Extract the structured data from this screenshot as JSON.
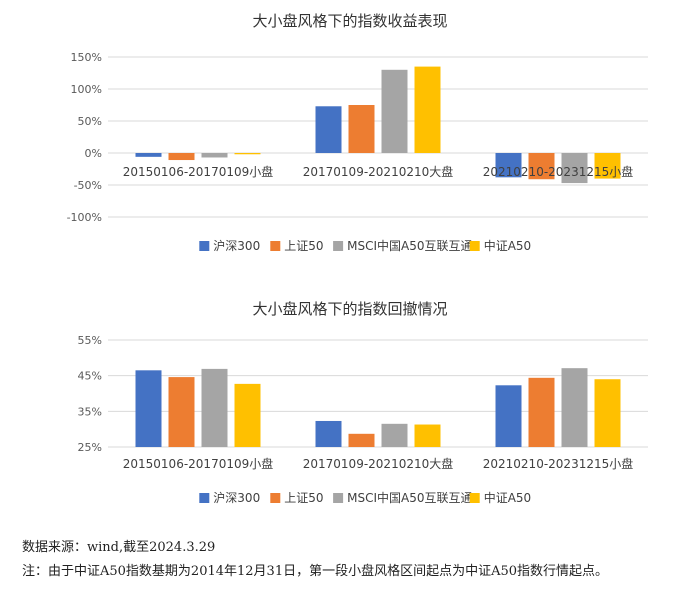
{
  "chart_data": [
    {
      "type": "bar",
      "title": "大小盘风格下的指数收益表现",
      "categories": [
        "20150106-20170109小盘",
        "20170109-20210210大盘",
        "20210210-20231215小盘"
      ],
      "series": [
        {
          "name": "沪深300",
          "color": "#4472C4",
          "values": [
            -6,
            73,
            -38
          ]
        },
        {
          "name": "上证50",
          "color": "#ED7D31",
          "values": [
            -11,
            75,
            -41
          ]
        },
        {
          "name": "MSCI中国A50互联互通",
          "color": "#A5A5A5",
          "values": [
            -7,
            130,
            -47
          ]
        },
        {
          "name": "中证A50",
          "color": "#FFC000",
          "values": [
            -2,
            135,
            -40
          ]
        }
      ],
      "y_ticks": [
        "150%",
        "100%",
        "50%",
        "0%",
        "-50%",
        "-100%"
      ],
      "ylim": [
        -100,
        150
      ],
      "grid": true,
      "legend": "bottom"
    },
    {
      "type": "bar",
      "title": "大小盘风格下的指数回撤情况",
      "categories": [
        "20150106-20170109小盘",
        "20170109-20210210大盘",
        "20210210-20231215小盘"
      ],
      "series": [
        {
          "name": "沪深300",
          "color": "#4472C4",
          "values": [
            46.5,
            32.3,
            42.3
          ]
        },
        {
          "name": "上证50",
          "color": "#ED7D31",
          "values": [
            44.6,
            28.7,
            44.4
          ]
        },
        {
          "name": "MSCI中国A50互联互通",
          "color": "#A5A5A5",
          "values": [
            46.9,
            31.5,
            47.1
          ]
        },
        {
          "name": "中证A50",
          "color": "#FFC000",
          "values": [
            42.7,
            31.3,
            44.0
          ]
        }
      ],
      "y_ticks": [
        "55%",
        "45%",
        "35%",
        "25%"
      ],
      "ylim": [
        25,
        55
      ],
      "grid": true,
      "legend": "bottom"
    }
  ],
  "notes": {
    "source": "数据来源：wind,截至2024.3.29",
    "footnote": "注：由于中证A50指数基期为2014年12月31日，第一段小盘风格区间起点为中证A50指数行情起点。"
  }
}
